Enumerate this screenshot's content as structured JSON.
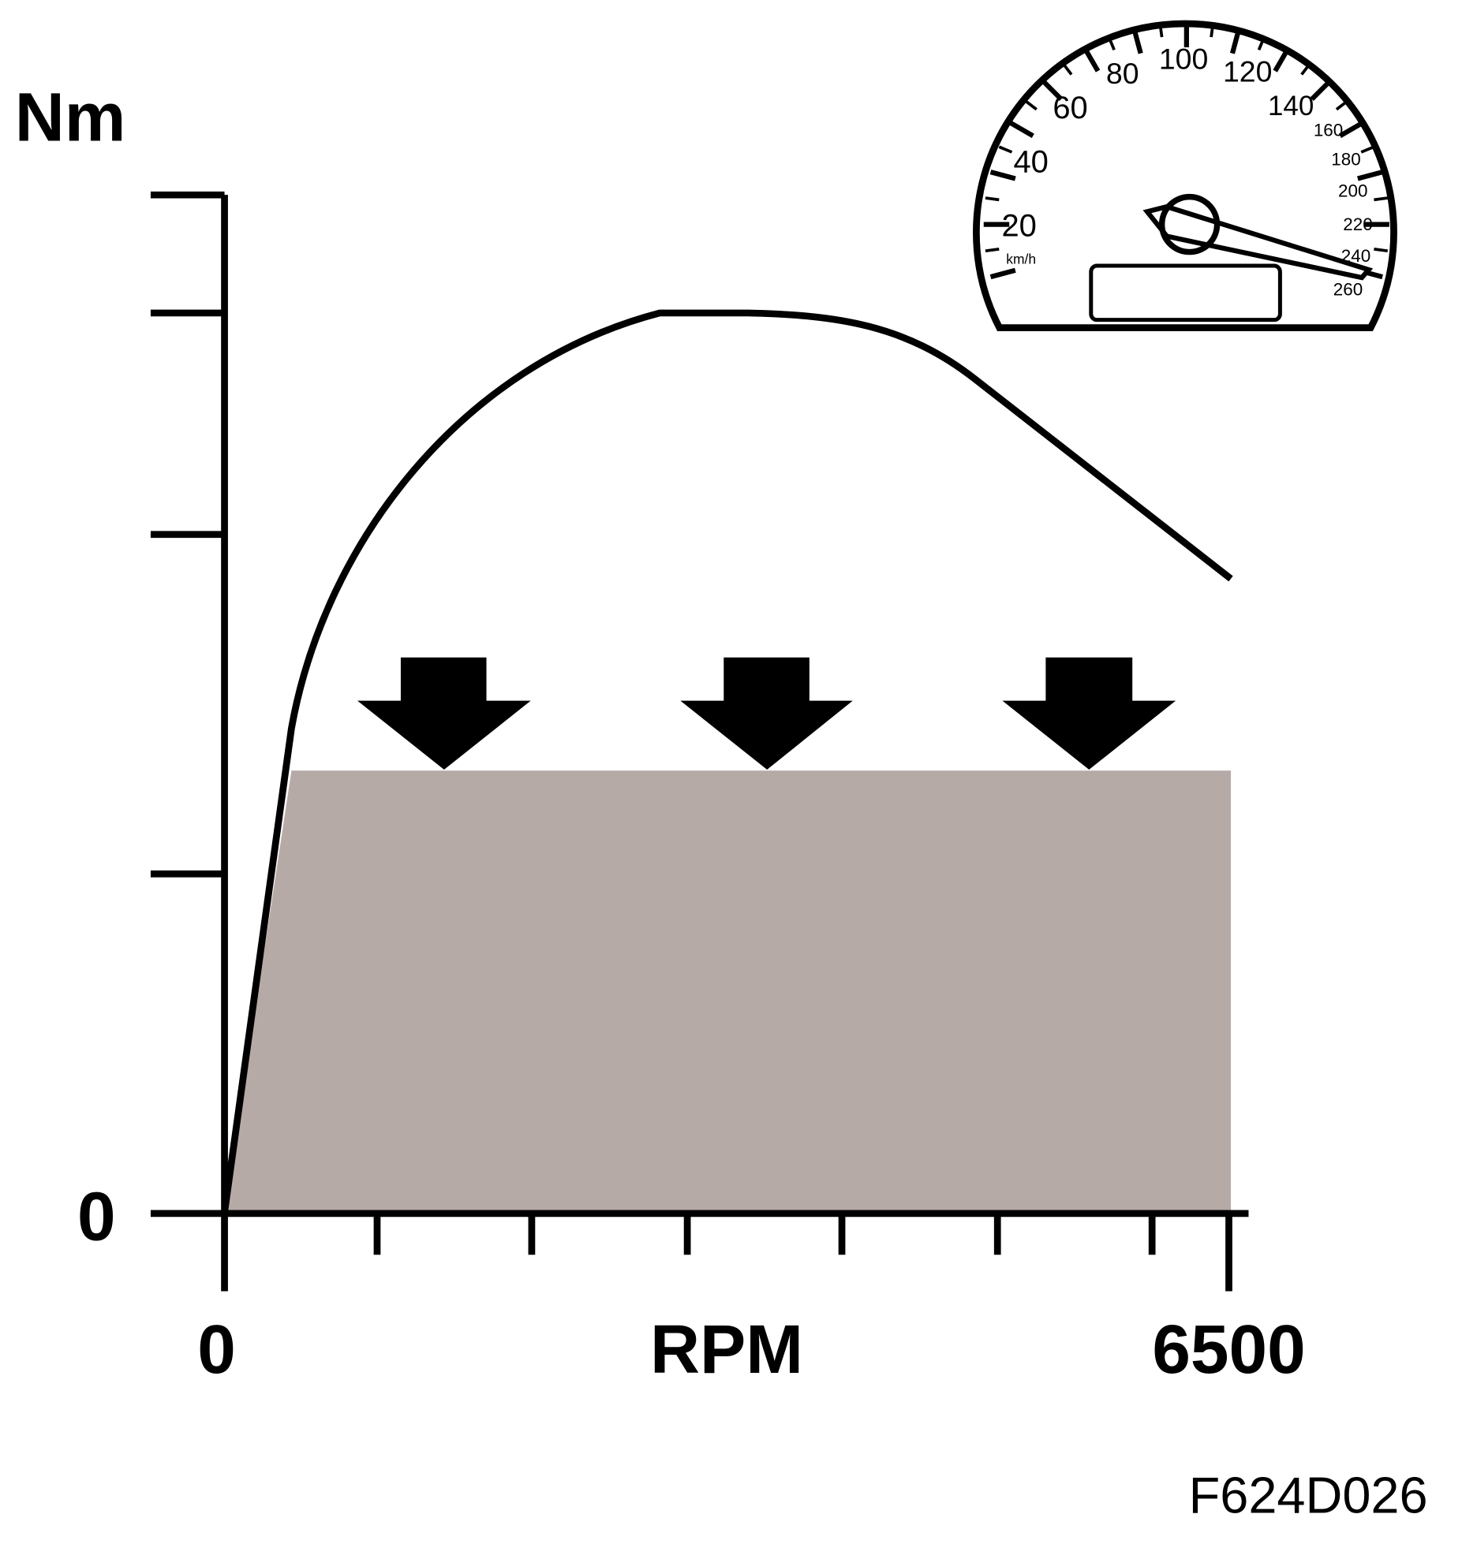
{
  "y_axis": {
    "title": "Nm",
    "zero_label": 0
  },
  "x_axis": {
    "title": "RPM",
    "min_label": 0,
    "max_label": 6500
  },
  "speedometer": {
    "unit": "km/h",
    "labels": [
      20,
      40,
      60,
      80,
      100,
      120,
      140,
      160,
      180,
      200,
      220,
      240,
      260
    ]
  },
  "figure_id": "F624D026"
}
